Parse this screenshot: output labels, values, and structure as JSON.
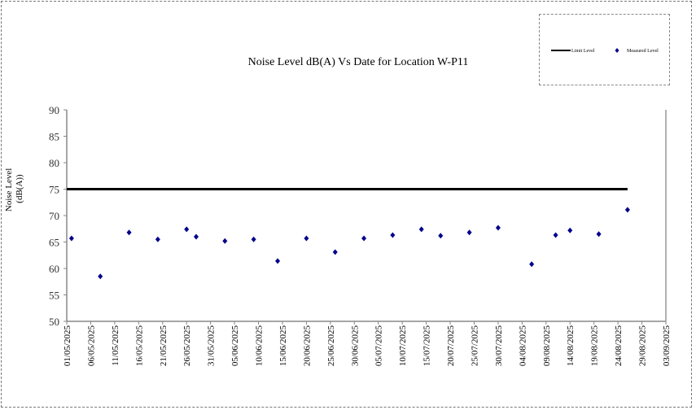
{
  "chart_data": {
    "type": "scatter",
    "title": "Noise Level dB(A) Vs Date for Location W-P11",
    "ylabel_lines": [
      "Noise Level",
      "(dB(A))"
    ],
    "xlabel": "",
    "ylim": [
      50,
      90
    ],
    "yticks": [
      50,
      55,
      60,
      65,
      70,
      75,
      80,
      85,
      90
    ],
    "xlim": [
      "2025-05-01",
      "2025-09-03"
    ],
    "xtick_labels": [
      "01/05/2025",
      "06/05/2025",
      "11/05/2025",
      "16/05/2025",
      "21/05/2025",
      "26/05/2025",
      "31/05/2025",
      "05/06/2025",
      "10/06/2025",
      "15/06/2025",
      "20/06/2025",
      "25/06/2025",
      "30/06/2025",
      "05/07/2025",
      "10/07/2025",
      "15/07/2025",
      "20/07/2025",
      "25/07/2025",
      "30/07/2025",
      "04/08/2025",
      "09/08/2025",
      "14/08/2025",
      "19/08/2025",
      "24/08/2025",
      "29/08/2025",
      "03/09/2025"
    ],
    "grid": false,
    "legend": {
      "placement": "top-right",
      "entries": [
        "Limit Level",
        "Measured Level"
      ]
    },
    "series": [
      {
        "name": "Limit Level",
        "type": "line",
        "color": "#000000",
        "x": [
          "2025-05-01",
          "2025-08-26"
        ],
        "y": [
          75,
          75
        ]
      },
      {
        "name": "Measured Level",
        "type": "scatter",
        "color": "#00008B",
        "x": [
          "2025-05-02",
          "2025-05-08",
          "2025-05-14",
          "2025-05-20",
          "2025-05-26",
          "2025-05-28",
          "2025-06-03",
          "2025-06-09",
          "2025-06-14",
          "2025-06-20",
          "2025-06-26",
          "2025-07-02",
          "2025-07-08",
          "2025-07-14",
          "2025-07-18",
          "2025-07-24",
          "2025-07-30",
          "2025-08-06",
          "2025-08-11",
          "2025-08-14",
          "2025-08-20",
          "2025-08-26"
        ],
        "y": [
          65.7,
          58.5,
          66.8,
          65.5,
          67.4,
          66.0,
          65.2,
          65.5,
          61.4,
          65.7,
          63.1,
          65.7,
          66.3,
          67.4,
          66.2,
          66.8,
          67.7,
          60.8,
          66.3,
          67.2,
          66.5,
          71.1
        ]
      }
    ]
  }
}
